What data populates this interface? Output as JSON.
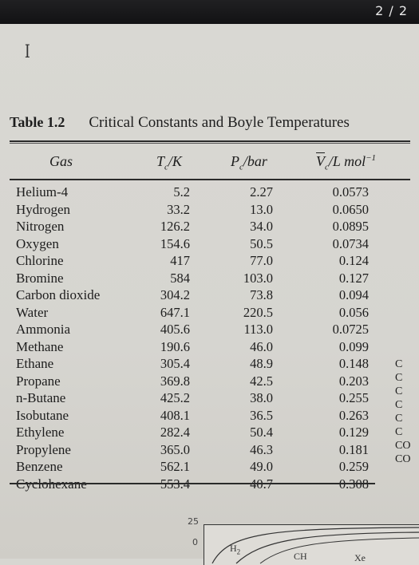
{
  "viewer": {
    "title_garbled": "",
    "page_indicator": "2 / 2"
  },
  "table": {
    "number": "Table 1.2",
    "caption": "Critical Constants and Boyle Temperatures",
    "headers": {
      "gas": "Gas",
      "tc": "T",
      "tc_sub": "c",
      "tc_unit": "/K",
      "pc": "P",
      "pc_sub": "c",
      "pc_unit": "/bar",
      "vc": "V",
      "vc_sub": "c",
      "vc_unit": "/L mol",
      "vc_sup": "−1"
    },
    "rows": [
      {
        "gas": "Helium-4",
        "tc": "5.2",
        "pc": "2.27",
        "vc": "0.0573"
      },
      {
        "gas": "Hydrogen",
        "tc": "33.2",
        "pc": "13.0",
        "vc": "0.0650"
      },
      {
        "gas": "Nitrogen",
        "tc": "126.2",
        "pc": "34.0",
        "vc": "0.0895"
      },
      {
        "gas": "Oxygen",
        "tc": "154.6",
        "pc": "50.5",
        "vc": "0.0734"
      },
      {
        "gas": "Chlorine",
        "tc": "417",
        "pc": "77.0",
        "vc": "0.124"
      },
      {
        "gas": "Bromine",
        "tc": "584",
        "pc": "103.0",
        "vc": "0.127"
      },
      {
        "gas": "Carbon dioxide",
        "tc": "304.2",
        "pc": "73.8",
        "vc": "0.094"
      },
      {
        "gas": "Water",
        "tc": "647.1",
        "pc": "220.5",
        "vc": "0.056"
      },
      {
        "gas": "Ammonia",
        "tc": "405.6",
        "pc": "113.0",
        "vc": "0.0725"
      },
      {
        "gas": "Methane",
        "tc": "190.6",
        "pc": "46.0",
        "vc": "0.099"
      },
      {
        "gas": "Ethane",
        "tc": "305.4",
        "pc": "48.9",
        "vc": "0.148"
      },
      {
        "gas": "Propane",
        "tc": "369.8",
        "pc": "42.5",
        "vc": "0.203"
      },
      {
        "gas": "n-Butane",
        "tc": "425.2",
        "pc": "38.0",
        "vc": "0.255"
      },
      {
        "gas": "Isobutane",
        "tc": "408.1",
        "pc": "36.5",
        "vc": "0.263"
      },
      {
        "gas": "Ethylene",
        "tc": "282.4",
        "pc": "50.4",
        "vc": "0.129"
      },
      {
        "gas": "Propylene",
        "tc": "365.0",
        "pc": "46.3",
        "vc": "0.181"
      },
      {
        "gas": "Benzene",
        "tc": "562.1",
        "pc": "49.0",
        "vc": "0.259"
      },
      {
        "gas": "Cyclohexane",
        "tc": "553.4",
        "pc": "40.7",
        "vc": "0.308"
      }
    ],
    "cut_off_column": [
      "C",
      "C",
      "C",
      "C",
      "C",
      "C",
      "CO",
      "CO"
    ]
  },
  "figure_fragment": {
    "tick_25": "25",
    "tick_0": "0",
    "label_h2": "H",
    "label_h2_sub": "2",
    "label_ch": "CH",
    "label_xe": "Xe"
  }
}
